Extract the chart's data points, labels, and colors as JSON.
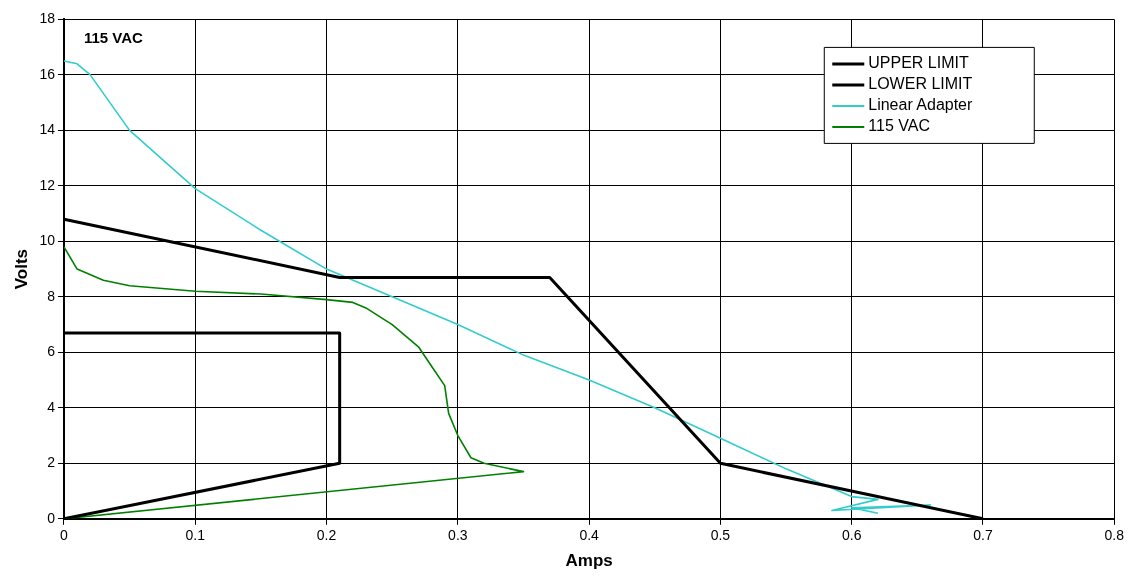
{
  "chart_data": {
    "type": "line",
    "xlabel": "Amps",
    "ylabel": "Volts",
    "annotations": [
      "115 VAC"
    ],
    "xlim": [
      0,
      0.8
    ],
    "xticks": [
      0,
      0.1,
      0.2,
      0.3,
      0.4,
      0.5,
      0.6,
      0.7,
      0.8
    ],
    "ylim": [
      0,
      18
    ],
    "yticks": [
      0,
      2,
      4,
      6,
      8,
      10,
      12,
      14,
      16,
      18
    ],
    "grid": true,
    "legend": "top right",
    "marker": "none",
    "line_style": "solid",
    "series": [
      {
        "name": "UPPER LIMIT",
        "color": "#000000",
        "x": [
          0,
          0.21,
          0.37,
          0.5,
          0.7
        ],
        "values": [
          10.8,
          8.7,
          8.7,
          2,
          0
        ]
      },
      {
        "name": "LOWER LIMIT",
        "color": "#000000",
        "x": [
          0,
          0.21,
          0.21,
          0
        ],
        "values": [
          0,
          2,
          6.7,
          6.7
        ]
      },
      {
        "name": "Linear Adapter",
        "color": "#33cccc",
        "x": [
          0,
          0.01,
          0.02,
          0.05,
          0.1,
          0.15,
          0.2,
          0.25,
          0.3,
          0.35,
          0.4,
          0.45,
          0.5,
          0.55,
          0.6,
          0.62,
          0.585,
          0.66,
          0.6,
          0.62
        ],
        "values": [
          16.5,
          16.4,
          16,
          14,
          11.9,
          10.4,
          9,
          8,
          7,
          5.9,
          5,
          4,
          2.9,
          1.8,
          0.8,
          0.7,
          0.3,
          0.5,
          0.4,
          0.2
        ]
      },
      {
        "name": "115 VAC",
        "color": "#008000",
        "x": [
          0,
          0.01,
          0.03,
          0.05,
          0.1,
          0.15,
          0.2,
          0.22,
          0.23,
          0.25,
          0.27,
          0.28,
          0.29,
          0.293,
          0.3,
          0.31,
          0.32,
          0.35,
          0
        ],
        "values": [
          9.8,
          9,
          8.6,
          8.4,
          8.2,
          8.1,
          7.9,
          7.8,
          7.6,
          7,
          6.2,
          5.5,
          4.8,
          3.8,
          3,
          2.2,
          2,
          1.7,
          0
        ]
      }
    ]
  }
}
